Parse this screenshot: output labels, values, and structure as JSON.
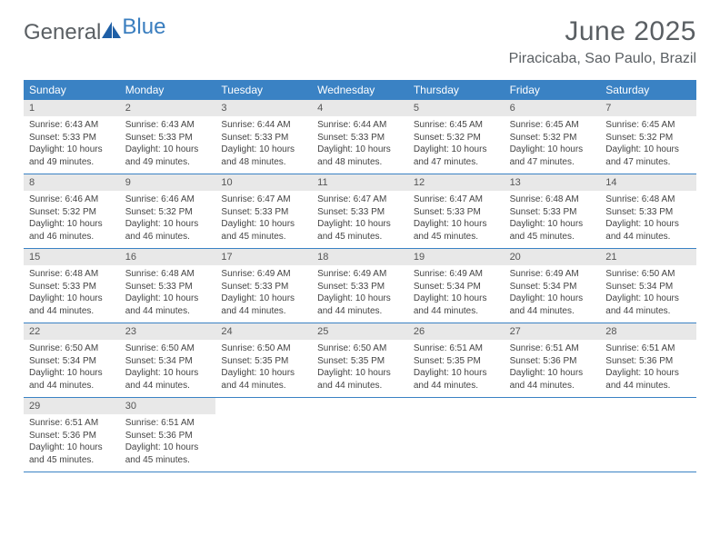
{
  "logo": {
    "word1": "General",
    "word2": "Blue",
    "sail_color": "#1e5fa6"
  },
  "title": "June 2025",
  "location": "Piracicaba, Sao Paulo, Brazil",
  "colors": {
    "header_bar": "#3a82c4",
    "header_text": "#ffffff",
    "daynum_bg": "#e8e8e8",
    "rule": "#3a82c4",
    "text": "#444444",
    "title_text": "#5a5f63"
  },
  "day_headers": [
    "Sunday",
    "Monday",
    "Tuesday",
    "Wednesday",
    "Thursday",
    "Friday",
    "Saturday"
  ],
  "weeks": [
    [
      {
        "n": "1",
        "sr": "6:43 AM",
        "ss": "5:33 PM",
        "dl": "10 hours and 49 minutes."
      },
      {
        "n": "2",
        "sr": "6:43 AM",
        "ss": "5:33 PM",
        "dl": "10 hours and 49 minutes."
      },
      {
        "n": "3",
        "sr": "6:44 AM",
        "ss": "5:33 PM",
        "dl": "10 hours and 48 minutes."
      },
      {
        "n": "4",
        "sr": "6:44 AM",
        "ss": "5:33 PM",
        "dl": "10 hours and 48 minutes."
      },
      {
        "n": "5",
        "sr": "6:45 AM",
        "ss": "5:32 PM",
        "dl": "10 hours and 47 minutes."
      },
      {
        "n": "6",
        "sr": "6:45 AM",
        "ss": "5:32 PM",
        "dl": "10 hours and 47 minutes."
      },
      {
        "n": "7",
        "sr": "6:45 AM",
        "ss": "5:32 PM",
        "dl": "10 hours and 47 minutes."
      }
    ],
    [
      {
        "n": "8",
        "sr": "6:46 AM",
        "ss": "5:32 PM",
        "dl": "10 hours and 46 minutes."
      },
      {
        "n": "9",
        "sr": "6:46 AM",
        "ss": "5:32 PM",
        "dl": "10 hours and 46 minutes."
      },
      {
        "n": "10",
        "sr": "6:47 AM",
        "ss": "5:33 PM",
        "dl": "10 hours and 45 minutes."
      },
      {
        "n": "11",
        "sr": "6:47 AM",
        "ss": "5:33 PM",
        "dl": "10 hours and 45 minutes."
      },
      {
        "n": "12",
        "sr": "6:47 AM",
        "ss": "5:33 PM",
        "dl": "10 hours and 45 minutes."
      },
      {
        "n": "13",
        "sr": "6:48 AM",
        "ss": "5:33 PM",
        "dl": "10 hours and 45 minutes."
      },
      {
        "n": "14",
        "sr": "6:48 AM",
        "ss": "5:33 PM",
        "dl": "10 hours and 44 minutes."
      }
    ],
    [
      {
        "n": "15",
        "sr": "6:48 AM",
        "ss": "5:33 PM",
        "dl": "10 hours and 44 minutes."
      },
      {
        "n": "16",
        "sr": "6:48 AM",
        "ss": "5:33 PM",
        "dl": "10 hours and 44 minutes."
      },
      {
        "n": "17",
        "sr": "6:49 AM",
        "ss": "5:33 PM",
        "dl": "10 hours and 44 minutes."
      },
      {
        "n": "18",
        "sr": "6:49 AM",
        "ss": "5:33 PM",
        "dl": "10 hours and 44 minutes."
      },
      {
        "n": "19",
        "sr": "6:49 AM",
        "ss": "5:34 PM",
        "dl": "10 hours and 44 minutes."
      },
      {
        "n": "20",
        "sr": "6:49 AM",
        "ss": "5:34 PM",
        "dl": "10 hours and 44 minutes."
      },
      {
        "n": "21",
        "sr": "6:50 AM",
        "ss": "5:34 PM",
        "dl": "10 hours and 44 minutes."
      }
    ],
    [
      {
        "n": "22",
        "sr": "6:50 AM",
        "ss": "5:34 PM",
        "dl": "10 hours and 44 minutes."
      },
      {
        "n": "23",
        "sr": "6:50 AM",
        "ss": "5:34 PM",
        "dl": "10 hours and 44 minutes."
      },
      {
        "n": "24",
        "sr": "6:50 AM",
        "ss": "5:35 PM",
        "dl": "10 hours and 44 minutes."
      },
      {
        "n": "25",
        "sr": "6:50 AM",
        "ss": "5:35 PM",
        "dl": "10 hours and 44 minutes."
      },
      {
        "n": "26",
        "sr": "6:51 AM",
        "ss": "5:35 PM",
        "dl": "10 hours and 44 minutes."
      },
      {
        "n": "27",
        "sr": "6:51 AM",
        "ss": "5:36 PM",
        "dl": "10 hours and 44 minutes."
      },
      {
        "n": "28",
        "sr": "6:51 AM",
        "ss": "5:36 PM",
        "dl": "10 hours and 44 minutes."
      }
    ],
    [
      {
        "n": "29",
        "sr": "6:51 AM",
        "ss": "5:36 PM",
        "dl": "10 hours and 45 minutes."
      },
      {
        "n": "30",
        "sr": "6:51 AM",
        "ss": "5:36 PM",
        "dl": "10 hours and 45 minutes."
      },
      null,
      null,
      null,
      null,
      null
    ]
  ],
  "labels": {
    "sunrise": "Sunrise: ",
    "sunset": "Sunset: ",
    "daylight": "Daylight: "
  }
}
